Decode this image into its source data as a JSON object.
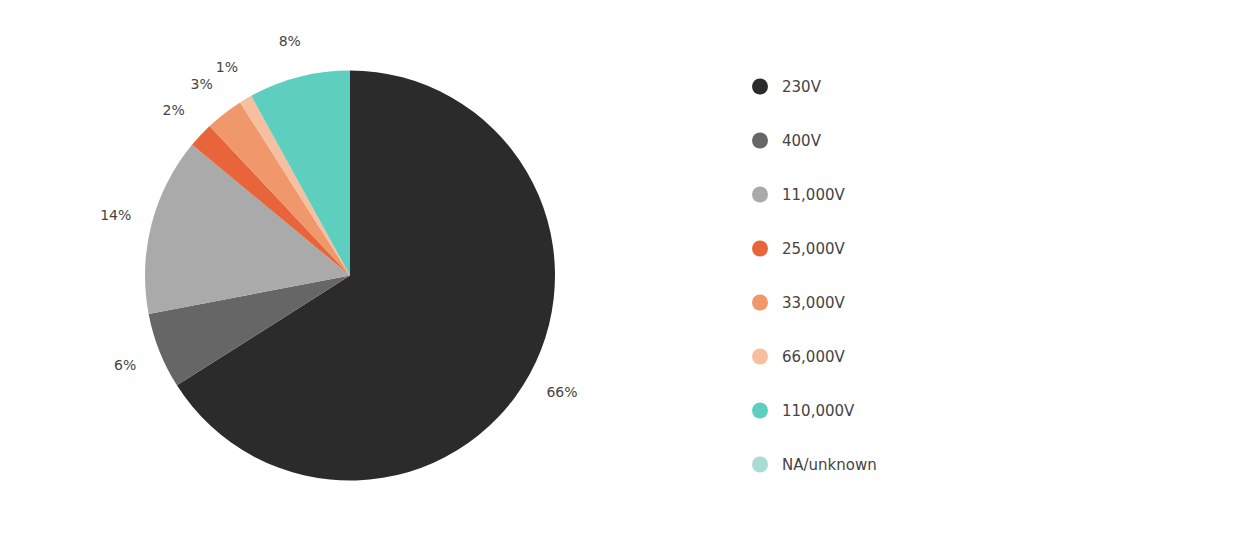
{
  "chart_data": {
    "type": "pie",
    "categories": [
      "230V",
      "400V",
      "11,000V",
      "25,000V",
      "33,000V",
      "66,000V",
      "110,000V",
      "NA/unknown"
    ],
    "values": [
      66,
      6,
      14,
      2,
      3,
      1,
      8,
      0.001
    ],
    "value_labels": [
      "66%",
      "6%",
      "14%",
      "2%",
      "3%",
      "1%",
      "8%",
      null
    ],
    "colors": [
      "#2b2b2b",
      "#666666",
      "#aaaaaa",
      "#e8643a",
      "#f0976b",
      "#f5bfa0",
      "#5ecfbf",
      "#a8ddd6"
    ],
    "data_labels": true,
    "legend": "right"
  }
}
